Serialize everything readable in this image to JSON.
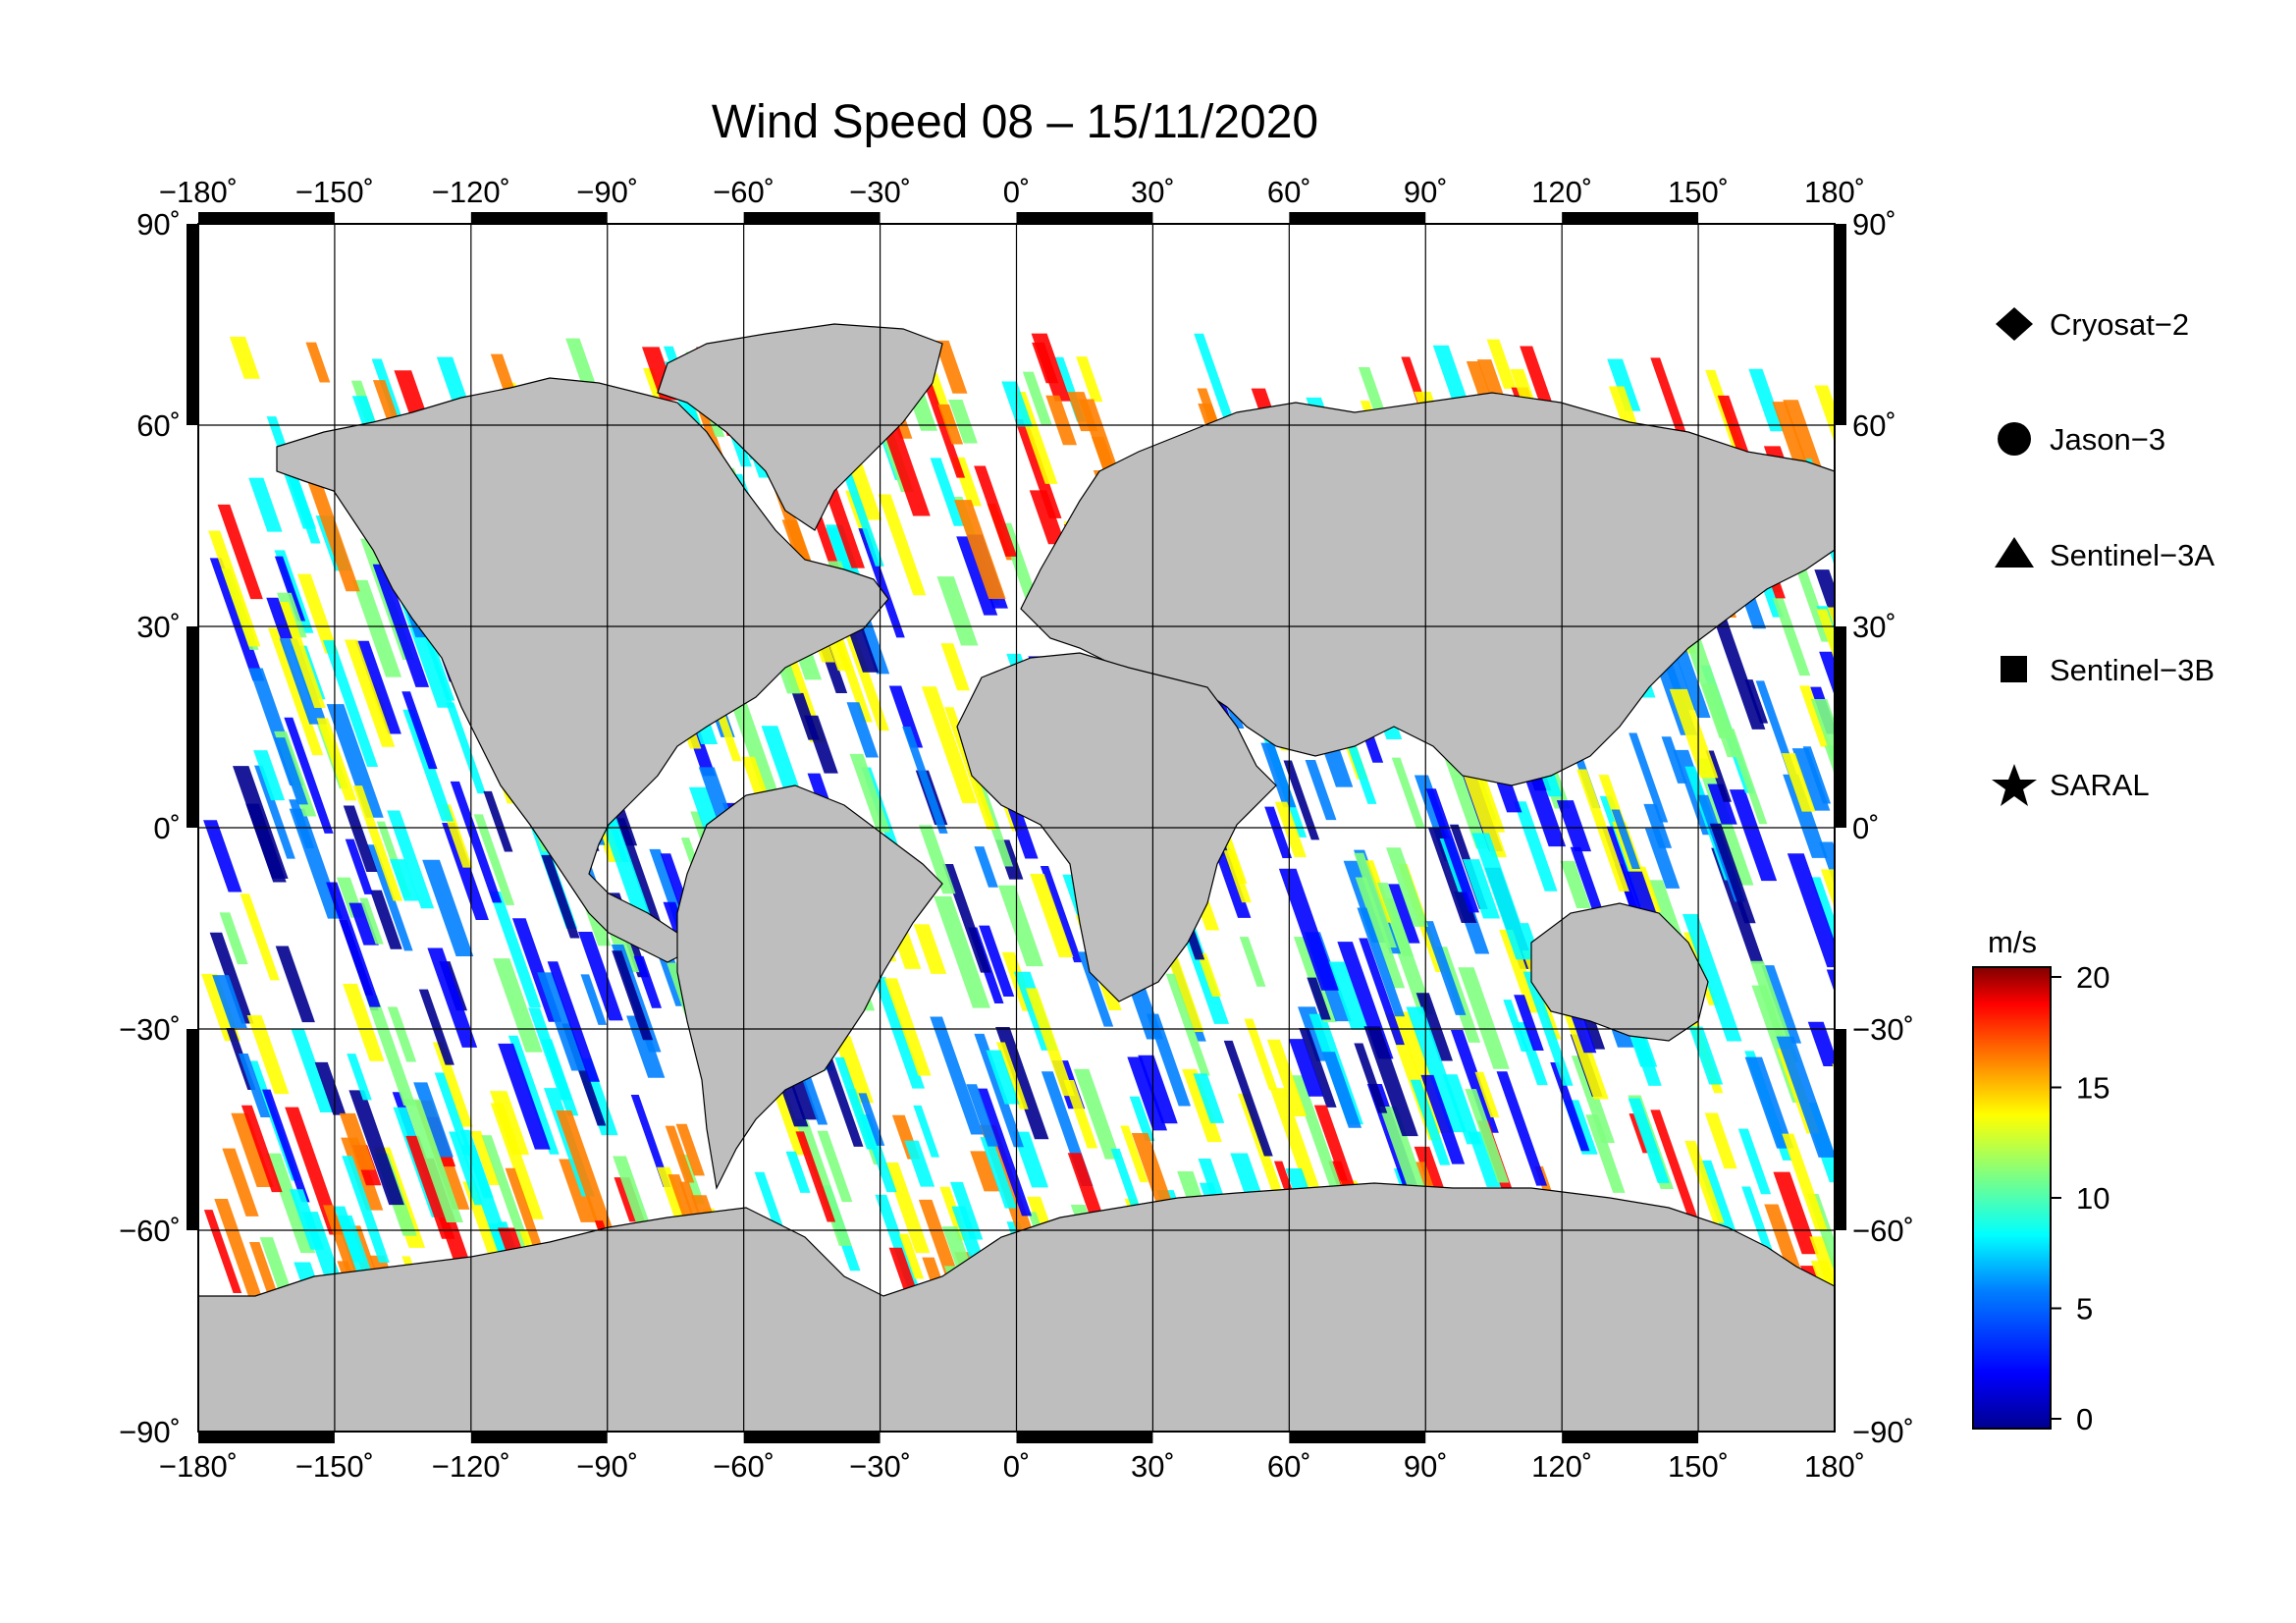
{
  "title": "Wind Speed 08 – 15/11/2020",
  "lon_ticks": [
    "−180˚",
    "−150˚",
    "−120˚",
    "−90˚",
    "−60˚",
    "−30˚",
    "0˚",
    "30˚",
    "60˚",
    "90˚",
    "120˚",
    "150˚",
    "180˚"
  ],
  "lat_ticks": [
    "90˚",
    "60˚",
    "30˚",
    "0˚",
    "−30˚",
    "−60˚",
    "−90˚"
  ],
  "legend": {
    "items": [
      {
        "label": "Cryosat−2",
        "icon": "diamond-icon"
      },
      {
        "label": "Jason−3",
        "icon": "circle-icon"
      },
      {
        "label": "Sentinel−3A",
        "icon": "triangle-icon"
      },
      {
        "label": "Sentinel−3B",
        "icon": "square-icon"
      },
      {
        "label": "SARAL",
        "icon": "star-icon"
      }
    ]
  },
  "colorbar": {
    "unit": "m/s",
    "min": 0,
    "max": 20,
    "tick_labels": [
      "20",
      "15",
      "10",
      "5",
      "0"
    ],
    "colors": [
      "#00008f",
      "#0000ff",
      "#0080ff",
      "#00ffff",
      "#80ff80",
      "#ffff00",
      "#ff8000",
      "#ff0000",
      "#800000"
    ]
  },
  "colors": {
    "land": "#bebebe",
    "ocean_background": "#ffffff",
    "frame": "#000000"
  },
  "chart_data": {
    "type": "heatmap",
    "title": "Wind Speed 08 – 15/11/2020",
    "xlim": [
      -180,
      180
    ],
    "ylim": [
      -90,
      90
    ],
    "x_ticks": [
      -180,
      -150,
      -120,
      -90,
      -60,
      -30,
      0,
      30,
      60,
      90,
      120,
      150,
      180
    ],
    "y_ticks": [
      90,
      60,
      30,
      0,
      -30,
      -60,
      -90
    ],
    "value_unit": "m/s",
    "value_range": [
      0,
      20
    ]
  }
}
